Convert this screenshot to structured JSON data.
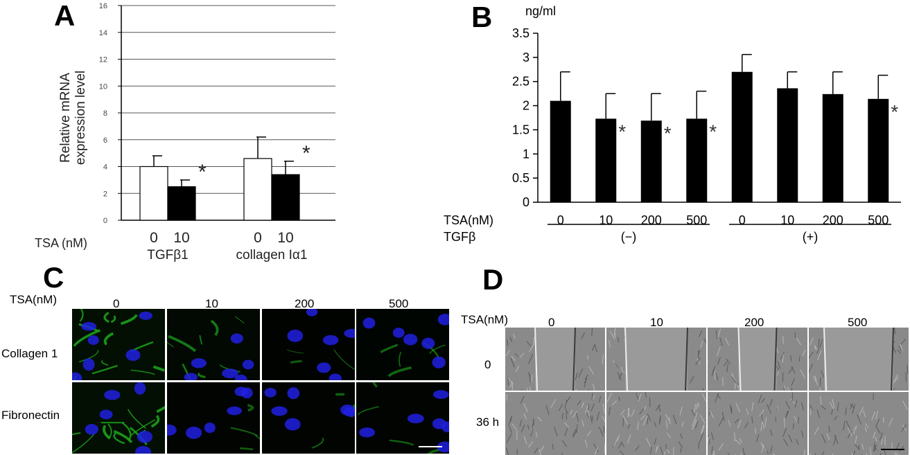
{
  "panels": {
    "a": "A",
    "b": "B",
    "c": "C",
    "d": "D"
  },
  "chart_data": [
    {
      "type": "bar",
      "panel": "A",
      "ylabel": "Relative mRNA expression level",
      "ylim": [
        0,
        16
      ],
      "yticks": [
        "0",
        "2",
        "4",
        "6",
        "8",
        "10",
        "12",
        "14",
        "16"
      ],
      "grid": true,
      "row_label": "TSA (nM)",
      "groups": [
        {
          "name": "TGFβ1",
          "bars": [
            {
              "tsa": "0",
              "value": 4.0,
              "error": 0.8,
              "fill": "#ffffff",
              "star": ""
            },
            {
              "tsa": "10",
              "value": 2.5,
              "error": 0.5,
              "fill": "#000000",
              "star": "*"
            }
          ]
        },
        {
          "name": "collagen Iα1",
          "bars": [
            {
              "tsa": "0",
              "value": 4.6,
              "error": 1.6,
              "fill": "#ffffff",
              "star": ""
            },
            {
              "tsa": "10",
              "value": 3.4,
              "error": 1.0,
              "fill": "#000000",
              "star": "*"
            }
          ]
        }
      ]
    },
    {
      "type": "bar",
      "panel": "B",
      "unit": "ng/ml",
      "ylim": [
        0,
        3.5
      ],
      "yticks": [
        "0",
        "0.5",
        "1",
        "1.5",
        "2",
        "2.5",
        "3",
        "3.5"
      ],
      "grid": false,
      "row1_label": "TSA(nM)",
      "row2_label": "TGFβ",
      "categories": [
        "0",
        "10",
        "200",
        "500",
        "0",
        "10",
        "200",
        "500"
      ],
      "values": [
        2.1,
        1.73,
        1.69,
        1.73,
        2.7,
        2.36,
        2.24,
        2.14
      ],
      "errors": [
        0.6,
        0.52,
        0.56,
        0.57,
        0.36,
        0.34,
        0.46,
        0.49
      ],
      "stars": [
        "",
        "*",
        "*",
        "*",
        "",
        "",
        "",
        "*"
      ],
      "groups": [
        "(−)",
        "(+)"
      ]
    }
  ],
  "panel_c": {
    "tsa_label": "TSA(nM)",
    "columns": [
      "0",
      "10",
      "200",
      "500"
    ],
    "rows": [
      "Collagen 1",
      "Fibronectin"
    ]
  },
  "panel_d": {
    "tsa_label": "TSA(nM)",
    "columns": [
      "0",
      "10",
      "200",
      "500"
    ],
    "rows": [
      "0",
      "36 h"
    ]
  },
  "colors": {
    "bar_black": "#000000",
    "bar_white": "#ffffff",
    "grid": "#555555",
    "nuclei": "#2020e0",
    "fibers": "#22cc22",
    "phase": "#8a8a8a"
  }
}
